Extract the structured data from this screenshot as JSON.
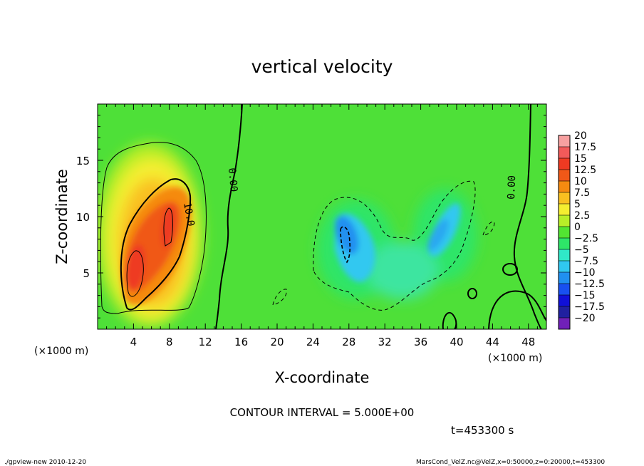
{
  "chart_data": {
    "type": "heatmap",
    "title": "vertical velocity",
    "xlabel": "X-coordinate",
    "ylabel": "Z-coordinate",
    "x_unit": "(×1000 m)",
    "y_unit": "(×1000 m)",
    "xlim": [
      0,
      50
    ],
    "ylim": [
      0,
      20
    ],
    "x_ticks": [
      "4",
      "8",
      "12",
      "16",
      "20",
      "24",
      "28",
      "32",
      "36",
      "40",
      "44",
      "48"
    ],
    "y_ticks": [
      "5",
      "10",
      "15"
    ],
    "colorbar": {
      "levels": [
        "20",
        "17.5",
        "15",
        "12.5",
        "10",
        "7.5",
        "5",
        "2.5",
        "0",
        "−2.5",
        "−5",
        "−7.5",
        "−10",
        "−12.5",
        "−15",
        "−17.5",
        "−20"
      ],
      "colors": [
        "#f7a0a0",
        "#f25a5a",
        "#ee3a22",
        "#f05818",
        "#f58a10",
        "#f9c020",
        "#f5ee30",
        "#b8ee28",
        "#52e532",
        "#2ee568",
        "#30e8c8",
        "#30c8f0",
        "#2090f0",
        "#1850f0",
        "#1010d8",
        "#2020a0",
        "#7020b8"
      ]
    },
    "features": [
      {
        "kind": "updraft",
        "x": 6.5,
        "z": 8,
        "max": 17.5
      },
      {
        "kind": "downdraft",
        "x": 28,
        "z": 8,
        "min": -10
      },
      {
        "kind": "downdraft",
        "x": 38,
        "z": 9,
        "min": -7.5
      }
    ],
    "contour_labels": [
      "10.0",
      "0.00",
      "0.00"
    ],
    "contour_interval_label": "CONTOUR INTERVAL = 5.000E+00",
    "time_label": "t=453300 s"
  },
  "footer": {
    "left": "./gpview-new  2010-12-20",
    "right": "MarsCond_VelZ.nc@VelZ,x=0:50000,z=0:20000,t=453300"
  }
}
